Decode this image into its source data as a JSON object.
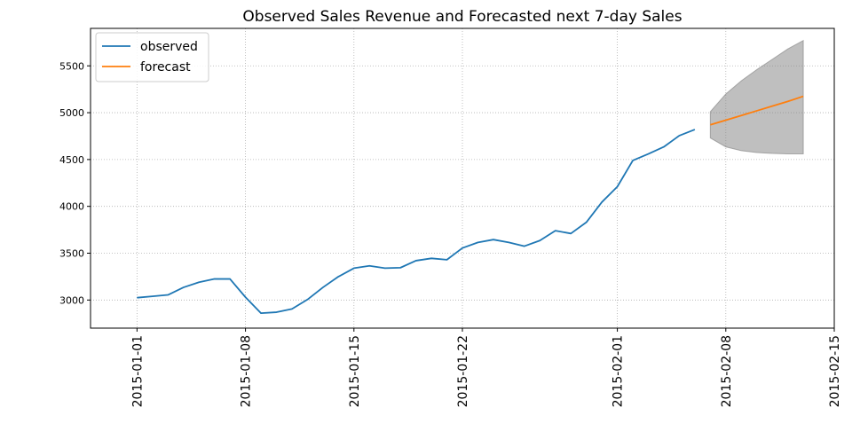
{
  "chart_data": {
    "type": "line",
    "title": "Observed Sales Revenue and Forecasted next 7-day Sales",
    "xlabel": "",
    "ylabel": "",
    "xlim": [
      "2014-12-29",
      "2015-02-15"
    ],
    "ylim": [
      2700,
      5900
    ],
    "x_ticks": [
      "2015-01-01",
      "2015-01-08",
      "2015-01-15",
      "2015-01-22",
      "2015-02-01",
      "2015-02-08",
      "2015-02-15"
    ],
    "y_ticks": [
      3000,
      3500,
      4000,
      4500,
      5000,
      5500
    ],
    "grid": true,
    "legend_position": "top-left",
    "series": [
      {
        "name": "observed",
        "color": "#1f77b4",
        "x": [
          "2015-01-01",
          "2015-01-02",
          "2015-01-03",
          "2015-01-04",
          "2015-01-05",
          "2015-01-06",
          "2015-01-07",
          "2015-01-08",
          "2015-01-09",
          "2015-01-10",
          "2015-01-11",
          "2015-01-12",
          "2015-01-13",
          "2015-01-14",
          "2015-01-15",
          "2015-01-16",
          "2015-01-17",
          "2015-01-18",
          "2015-01-19",
          "2015-01-20",
          "2015-01-21",
          "2015-01-22",
          "2015-01-23",
          "2015-01-24",
          "2015-01-25",
          "2015-01-26",
          "2015-01-27",
          "2015-01-28",
          "2015-01-29",
          "2015-01-30",
          "2015-01-31",
          "2015-02-01",
          "2015-02-02",
          "2015-02-03",
          "2015-02-04",
          "2015-02-05",
          "2015-02-06"
        ],
        "y": [
          3025,
          3040,
          3055,
          3135,
          3190,
          3225,
          3225,
          3030,
          2860,
          2870,
          2905,
          3005,
          3135,
          3250,
          3340,
          3365,
          3340,
          3345,
          3420,
          3445,
          3430,
          3555,
          3615,
          3645,
          3615,
          3575,
          3635,
          3740,
          3710,
          3830,
          4045,
          4210,
          4490,
          4560,
          4635,
          4755,
          4820
        ]
      },
      {
        "name": "forecast",
        "color": "#ff7f0e",
        "x": [
          "2015-02-07",
          "2015-02-08",
          "2015-02-09",
          "2015-02-10",
          "2015-02-11",
          "2015-02-12",
          "2015-02-13"
        ],
        "y": [
          4870,
          4920,
          4970,
          5020,
          5070,
          5120,
          5175
        ]
      }
    ],
    "confidence_band": {
      "color": "#7f7f7f",
      "x": [
        "2015-02-07",
        "2015-02-08",
        "2015-02-09",
        "2015-02-10",
        "2015-02-11",
        "2015-02-12",
        "2015-02-13"
      ],
      "lower": [
        4730,
        4635,
        4595,
        4575,
        4565,
        4560,
        4560
      ],
      "upper": [
        5010,
        5200,
        5340,
        5460,
        5570,
        5680,
        5770
      ]
    }
  }
}
